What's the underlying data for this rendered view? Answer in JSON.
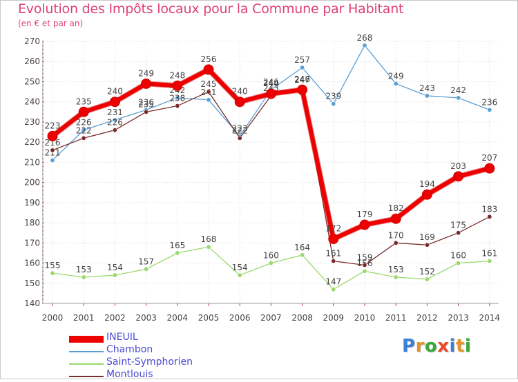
{
  "header": {
    "title": "Evolution des Impôts locaux pour la Commune par Habitant",
    "subtitle": "(en € et par an)"
  },
  "chart_data": {
    "type": "line",
    "title": "Evolution des Impôts locaux pour la Commune par Habitant",
    "subtitle": "(en € et par an)",
    "x": [
      "2000",
      "2001",
      "2002",
      "2003",
      "2004",
      "2005",
      "2006",
      "2007",
      "2008",
      "2009",
      "2010",
      "2011",
      "2012",
      "2013",
      "2014"
    ],
    "ylim": [
      140,
      270
    ],
    "yticks": [
      140,
      150,
      160,
      170,
      180,
      190,
      200,
      210,
      220,
      230,
      240,
      250,
      260,
      270
    ],
    "grid": true,
    "legend_position": "bottom-left",
    "series": [
      {
        "name": "INEUIL",
        "color": "#ee0000",
        "emphasis": true,
        "values": [
          223,
          235,
          240,
          249,
          248,
          256,
          240,
          244,
          246,
          172,
          179,
          182,
          194,
          203,
          207
        ]
      },
      {
        "name": "Chambon",
        "color": "#5a9fd4",
        "values": [
          211,
          226,
          231,
          236,
          242,
          241,
          223,
          246,
          257,
          239,
          268,
          249,
          243,
          242,
          236
        ]
      },
      {
        "name": "Saint-Symphorien",
        "color": "#99d86a",
        "values": [
          155,
          153,
          154,
          157,
          165,
          168,
          154,
          160,
          164,
          147,
          156,
          153,
          152,
          160,
          161
        ]
      },
      {
        "name": "Montlouis",
        "color": "#7a2a2a",
        "values": [
          216,
          222,
          226,
          235,
          238,
          245,
          222,
          243,
          247,
          161,
          159,
          170,
          169,
          175,
          183
        ]
      }
    ]
  },
  "logo": {
    "letters": [
      "P",
      "r",
      "o",
      "x",
      "i",
      "t",
      "i"
    ],
    "colors": [
      "#3a7fd8",
      "#e8932a",
      "#3aa83a",
      "#e84a2a",
      "#3a7fd8",
      "#e8932a",
      "#3aa83a"
    ]
  }
}
